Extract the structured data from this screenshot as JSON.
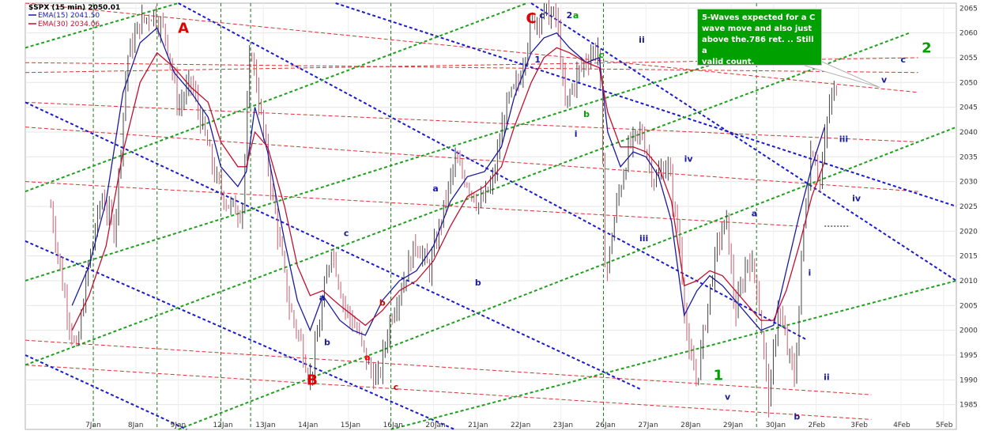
{
  "chart_data": {
    "type": "line",
    "title": "$SPX (15 min) 2050.01",
    "series": [
      {
        "name": "EMA(15) 2041.50",
        "color": "#1a1aa0",
        "points": [
          [
            0.5,
            2005
          ],
          [
            0.9,
            2013
          ],
          [
            1.3,
            2026
          ],
          [
            1.7,
            2048
          ],
          [
            2.1,
            2058
          ],
          [
            2.5,
            2061
          ],
          [
            2.9,
            2052
          ],
          [
            3.3,
            2048
          ],
          [
            3.7,
            2043
          ],
          [
            4.0,
            2033
          ],
          [
            4.4,
            2029
          ],
          [
            4.6,
            2032
          ],
          [
            4.8,
            2045
          ],
          [
            5.1,
            2036
          ],
          [
            5.5,
            2018
          ],
          [
            5.8,
            2006
          ],
          [
            6.1,
            2000
          ],
          [
            6.4,
            2007
          ],
          [
            6.8,
            2002
          ],
          [
            7.1,
            2000
          ],
          [
            7.4,
            1999
          ],
          [
            7.8,
            2006
          ],
          [
            8.2,
            2010
          ],
          [
            8.6,
            2012
          ],
          [
            9.0,
            2017
          ],
          [
            9.4,
            2026
          ],
          [
            9.8,
            2031
          ],
          [
            10.2,
            2032
          ],
          [
            10.6,
            2037
          ],
          [
            10.9,
            2047
          ],
          [
            11.3,
            2056
          ],
          [
            11.6,
            2059
          ],
          [
            11.9,
            2060
          ],
          [
            12.2,
            2057
          ],
          [
            12.6,
            2054
          ],
          [
            12.9,
            2055
          ],
          [
            13.1,
            2040
          ],
          [
            13.4,
            2033
          ],
          [
            13.7,
            2036
          ],
          [
            14.0,
            2035
          ],
          [
            14.3,
            2031
          ],
          [
            14.6,
            2022
          ],
          [
            14.9,
            2003
          ],
          [
            15.2,
            2008
          ],
          [
            15.5,
            2011
          ],
          [
            15.8,
            2009
          ],
          [
            16.1,
            2006
          ],
          [
            16.4,
            2003
          ],
          [
            16.7,
            2000
          ],
          [
            17.0,
            2001
          ],
          [
            17.3,
            2012
          ],
          [
            17.6,
            2023
          ],
          [
            17.9,
            2033
          ],
          [
            18.2,
            2041
          ]
        ]
      },
      {
        "name": "EMA(30) 2034.06",
        "color": "#c01030",
        "points": [
          [
            0.5,
            2000
          ],
          [
            0.9,
            2007
          ],
          [
            1.3,
            2017
          ],
          [
            1.7,
            2036
          ],
          [
            2.1,
            2050
          ],
          [
            2.5,
            2056
          ],
          [
            2.9,
            2053
          ],
          [
            3.3,
            2049
          ],
          [
            3.7,
            2046
          ],
          [
            4.0,
            2038
          ],
          [
            4.4,
            2033
          ],
          [
            4.6,
            2033
          ],
          [
            4.8,
            2040
          ],
          [
            5.1,
            2037
          ],
          [
            5.5,
            2025
          ],
          [
            5.8,
            2013
          ],
          [
            6.1,
            2007
          ],
          [
            6.4,
            2008
          ],
          [
            6.8,
            2005
          ],
          [
            7.1,
            2003
          ],
          [
            7.4,
            2001
          ],
          [
            7.8,
            2004
          ],
          [
            8.2,
            2008
          ],
          [
            8.6,
            2010
          ],
          [
            9.0,
            2014
          ],
          [
            9.4,
            2021
          ],
          [
            9.8,
            2027
          ],
          [
            10.2,
            2029
          ],
          [
            10.6,
            2033
          ],
          [
            10.9,
            2041
          ],
          [
            11.3,
            2050
          ],
          [
            11.6,
            2055
          ],
          [
            11.9,
            2057
          ],
          [
            12.2,
            2056
          ],
          [
            12.6,
            2054
          ],
          [
            12.9,
            2053
          ],
          [
            13.1,
            2044
          ],
          [
            13.4,
            2037
          ],
          [
            13.7,
            2037
          ],
          [
            14.0,
            2036
          ],
          [
            14.3,
            2033
          ],
          [
            14.6,
            2026
          ],
          [
            14.9,
            2009
          ],
          [
            15.2,
            2010
          ],
          [
            15.5,
            2012
          ],
          [
            15.8,
            2011
          ],
          [
            16.1,
            2008
          ],
          [
            16.4,
            2005
          ],
          [
            16.7,
            2002
          ],
          [
            17.0,
            2002
          ],
          [
            17.3,
            2008
          ],
          [
            17.6,
            2017
          ],
          [
            17.9,
            2027
          ],
          [
            18.2,
            2034
          ]
        ]
      }
    ],
    "price_path": [
      [
        0.0,
        2025
      ],
      [
        0.3,
        2008
      ],
      [
        0.6,
        1995
      ],
      [
        0.9,
        2014
      ],
      [
        1.2,
        2027
      ],
      [
        1.5,
        2020
      ],
      [
        1.8,
        2055
      ],
      [
        2.1,
        2062
      ],
      [
        2.4,
        2064
      ],
      [
        2.7,
        2060
      ],
      [
        3.0,
        2045
      ],
      [
        3.3,
        2050
      ],
      [
        3.6,
        2040
      ],
      [
        3.9,
        2030
      ],
      [
        4.2,
        2025
      ],
      [
        4.5,
        2024
      ],
      [
        4.7,
        2058
      ],
      [
        5.0,
        2040
      ],
      [
        5.3,
        2022
      ],
      [
        5.6,
        2005
      ],
      [
        5.9,
        1997
      ],
      [
        6.1,
        1990
      ],
      [
        6.3,
        2000
      ],
      [
        6.6,
        2017
      ],
      [
        6.9,
        2005
      ],
      [
        7.2,
        2000
      ],
      [
        7.5,
        1992
      ],
      [
        7.7,
        1990
      ],
      [
        8.0,
        2003
      ],
      [
        8.3,
        2010
      ],
      [
        8.6,
        2018
      ],
      [
        8.9,
        2012
      ],
      [
        9.2,
        2023
      ],
      [
        9.5,
        2034
      ],
      [
        9.8,
        2030
      ],
      [
        10.1,
        2025
      ],
      [
        10.4,
        2030
      ],
      [
        10.7,
        2045
      ],
      [
        11.0,
        2050
      ],
      [
        11.3,
        2062
      ],
      [
        11.6,
        2064
      ],
      [
        11.9,
        2063
      ],
      [
        12.1,
        2045
      ],
      [
        12.4,
        2052
      ],
      [
        12.7,
        2056
      ],
      [
        12.9,
        2057
      ],
      [
        13.05,
        2010
      ],
      [
        13.3,
        2025
      ],
      [
        13.6,
        2037
      ],
      [
        13.9,
        2040
      ],
      [
        14.2,
        2030
      ],
      [
        14.5,
        2034
      ],
      [
        14.8,
        2017
      ],
      [
        15.0,
        1995
      ],
      [
        15.2,
        1990
      ],
      [
        15.5,
        2008
      ],
      [
        15.7,
        2018
      ],
      [
        15.9,
        2022
      ],
      [
        16.1,
        2003
      ],
      [
        16.4,
        2015
      ],
      [
        16.6,
        2010
      ],
      [
        16.9,
        1985
      ],
      [
        17.1,
        2005
      ],
      [
        17.3,
        1997
      ],
      [
        17.5,
        1990
      ],
      [
        17.7,
        2020
      ],
      [
        17.9,
        2038
      ],
      [
        18.1,
        2030
      ],
      [
        18.3,
        2045
      ],
      [
        18.5,
        2050
      ]
    ],
    "x_axis": {
      "tick_labels": [
        "7Jan",
        "8Jan",
        "9Jan",
        "12Jan",
        "13Jan",
        "14Jan",
        "15Jan",
        "16Jan",
        "20Jan",
        "21Jan",
        "22Jan",
        "23Jan",
        "26Jan",
        "27Jan",
        "28Jan",
        "29Jan",
        "30Jan",
        "2Feb",
        "3Feb",
        "4Feb",
        "5Feb"
      ],
      "tick_positions": [
        1.0,
        2.0,
        3.0,
        4.0,
        5.0,
        6.0,
        7.0,
        8.0,
        9.0,
        10.0,
        11.0,
        12.0,
        13.0,
        14.0,
        15.0,
        16.0,
        17.0,
        18.0,
        19.0,
        20.0,
        21.0
      ]
    },
    "y_axis": {
      "range": [
        1980,
        2066
      ],
      "ticks": [
        1985,
        1990,
        1995,
        2000,
        2005,
        2010,
        2015,
        2020,
        2025,
        2030,
        2035,
        2040,
        2045,
        2050,
        2055,
        2060,
        2065
      ],
      "tick_labels": [
        "1985",
        "1990",
        "1995",
        "2000",
        "2005",
        "2010",
        "2015",
        "2020",
        "2025",
        "2030",
        "2035",
        "2040",
        "2045",
        "2050",
        "2055",
        "2060",
        "2065"
      ],
      "side": "right"
    },
    "grid": true,
    "legend": "top-left",
    "x_range": [
      -0.6,
      21.3
    ],
    "week_separators": [
      1.0,
      2.5,
      4.0,
      4.7,
      8.0,
      13.0,
      16.6
    ],
    "red_lines": [
      {
        "p1": [
          -0.6,
          2054
        ],
        "p2": [
          20.4,
          2052
        ]
      },
      {
        "p1": [
          -0.6,
          2041
        ],
        "p2": [
          20.4,
          2028
        ]
      },
      {
        "p1": [
          -0.6,
          2030
        ],
        "p2": [
          17.6,
          2021
        ]
      },
      {
        "p1": [
          -0.6,
          1998
        ],
        "p2": [
          19.3,
          1987
        ]
      },
      {
        "p1": [
          -0.6,
          1993
        ],
        "p2": [
          19.3,
          1982
        ]
      },
      {
        "p1": [
          -0.6,
          2046
        ],
        "p2": [
          20.4,
          2038
        ]
      },
      {
        "p1": [
          -0.6,
          2052
        ],
        "p2": [
          20.4,
          2055
        ]
      },
      {
        "p1": [
          -0.6,
          2066
        ],
        "p2": [
          20.4,
          2048
        ]
      }
    ],
    "blue_lines": [
      {
        "p1": [
          -0.6,
          2046
        ],
        "p2": [
          13.9,
          1988
        ]
      },
      {
        "p1": [
          -0.6,
          2018
        ],
        "p2": [
          9.5,
          1980
        ]
      },
      {
        "p1": [
          -0.6,
          1995
        ],
        "p2": [
          3.2,
          1980
        ]
      },
      {
        "p1": [
          6.7,
          2066
        ],
        "p2": [
          21.3,
          2025
        ]
      },
      {
        "p1": [
          11.3,
          2066
        ],
        "p2": [
          21.3,
          2010
        ]
      },
      {
        "p1": [
          3.0,
          2066
        ],
        "p2": [
          17.8,
          1998
        ]
      }
    ],
    "green_lines": [
      {
        "p1": [
          -0.6,
          2057
        ],
        "p2": [
          3.0,
          2066
        ]
      },
      {
        "p1": [
          -0.6,
          2028
        ],
        "p2": [
          11.2,
          2066
        ]
      },
      {
        "p1": [
          -0.6,
          2010
        ],
        "p2": [
          16.8,
          2057
        ]
      },
      {
        "p1": [
          -0.6,
          1993
        ],
        "p2": [
          20.2,
          2060
        ]
      },
      {
        "p1": [
          3.0,
          1980
        ],
        "p2": [
          21.3,
          2041
        ]
      },
      {
        "p1": [
          8.0,
          1980
        ],
        "p2": [
          21.3,
          2010
        ]
      }
    ],
    "hline": {
      "x1": 18.2,
      "x2": 18.8,
      "y": 2021
    },
    "wave_labels": [
      {
        "text": "A",
        "x": 3.12,
        "y": 2060,
        "color": "#e00000",
        "size": 18
      },
      {
        "text": "B",
        "x": 6.15,
        "y": 1989,
        "color": "#e00000",
        "size": 18
      },
      {
        "text": "C",
        "x": 11.3,
        "y": 2062,
        "color": "#e00000",
        "size": 18
      },
      {
        "text": "1",
        "x": 15.7,
        "y": 1990,
        "color": "#00a000",
        "size": 18
      },
      {
        "text": "2",
        "x": 20.6,
        "y": 2056,
        "color": "#00a000",
        "size": 18
      },
      {
        "text": "a",
        "x": 6.38,
        "y": 2006,
        "color": "#1a1aa0",
        "size": 11
      },
      {
        "text": "b",
        "x": 6.5,
        "y": 1997,
        "color": "#1a1aa0",
        "size": 11
      },
      {
        "text": "c",
        "x": 6.95,
        "y": 2019,
        "color": "#1a1aa0",
        "size": 11
      },
      {
        "text": "a",
        "x": 7.45,
        "y": 1994,
        "color": "#e00000",
        "size": 11
      },
      {
        "text": "b",
        "x": 7.8,
        "y": 2005,
        "color": "#e00000",
        "size": 11
      },
      {
        "text": "c",
        "x": 8.12,
        "y": 1988,
        "color": "#e00000",
        "size": 11
      },
      {
        "text": "a",
        "x": 9.05,
        "y": 2028,
        "color": "#1a1aa0",
        "size": 11
      },
      {
        "text": "b",
        "x": 10.05,
        "y": 2009,
        "color": "#1a1aa0",
        "size": 11
      },
      {
        "text": "c",
        "x": 11.55,
        "y": 2063,
        "color": "#1a1aa0",
        "size": 11
      },
      {
        "text": "1",
        "x": 11.45,
        "y": 2054,
        "color": "#1a1aa0",
        "size": 11
      },
      {
        "text": "2",
        "x": 12.2,
        "y": 2063,
        "color": "#1a1aa0",
        "size": 11
      },
      {
        "text": "a",
        "x": 12.35,
        "y": 2063,
        "color": "#00a000",
        "size": 11
      },
      {
        "text": "c",
        "x": 12.95,
        "y": 2055,
        "color": "#00a000",
        "size": 11
      },
      {
        "text": "b",
        "x": 12.6,
        "y": 2043,
        "color": "#00a000",
        "size": 11
      },
      {
        "text": "i",
        "x": 12.35,
        "y": 2039,
        "color": "#1a1aa0",
        "size": 11
      },
      {
        "text": "ii",
        "x": 13.9,
        "y": 2058,
        "color": "#1a1aa0",
        "size": 11
      },
      {
        "text": "iii",
        "x": 13.95,
        "y": 2018,
        "color": "#1a1aa0",
        "size": 11
      },
      {
        "text": "iv",
        "x": 15.0,
        "y": 2034,
        "color": "#1a1aa0",
        "size": 11
      },
      {
        "text": "v",
        "x": 15.92,
        "y": 1986,
        "color": "#1a1aa0",
        "size": 11
      },
      {
        "text": "a",
        "x": 16.55,
        "y": 2023,
        "color": "#1a1aa0",
        "size": 11
      },
      {
        "text": "b",
        "x": 17.55,
        "y": 1982,
        "color": "#1a1aa0",
        "size": 11
      },
      {
        "text": "i",
        "x": 17.85,
        "y": 2011,
        "color": "#1a1aa0",
        "size": 11
      },
      {
        "text": "ii",
        "x": 18.25,
        "y": 1990,
        "color": "#1a1aa0",
        "size": 11
      },
      {
        "text": "iii",
        "x": 18.65,
        "y": 2038,
        "color": "#1a1aa0",
        "size": 11
      },
      {
        "text": "iv",
        "x": 18.95,
        "y": 2026,
        "color": "#1a1aa0",
        "size": 11
      },
      {
        "text": "v",
        "x": 19.6,
        "y": 2050,
        "color": "#1a1aa0",
        "size": 11
      },
      {
        "text": "c",
        "x": 20.05,
        "y": 2054,
        "color": "#1a1aa0",
        "size": 11
      }
    ],
    "annotation": {
      "lines": [
        "5-Waves expected for a C",
        "wave move and also just",
        "above the.786 ret. .. Still a",
        "valid count."
      ],
      "pointer_to": [
        19.5,
        2049
      ]
    }
  }
}
